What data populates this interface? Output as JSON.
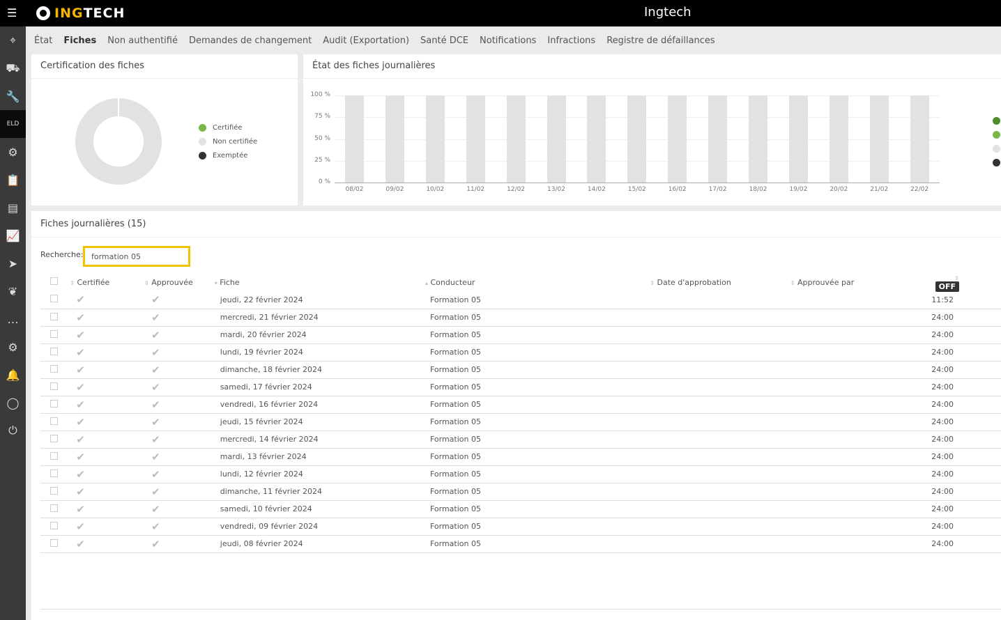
{
  "header": {
    "logo_a": "ING",
    "logo_b": "TECH",
    "title": "Ingtech"
  },
  "sidebar": {
    "items": [
      "map-pin",
      "truck",
      "wrench",
      "eld",
      "engine",
      "clipboard",
      "screen",
      "chart",
      "send",
      "leaf",
      "message",
      "gear",
      "alarm",
      "user",
      "power"
    ],
    "active": 3
  },
  "tabs": [
    "État",
    "Fiches",
    "Non authentifié",
    "Demandes de changement",
    "Audit (Exportation)",
    "Santé DCE",
    "Notifications",
    "Infractions",
    "Registre de défaillances"
  ],
  "active_tab": "Fiches",
  "cert_panel": {
    "title": "Certification des fiches",
    "legend": [
      {
        "label": "Certifiée",
        "color": "#7ab648"
      },
      {
        "label": "Non certifiée",
        "color": "#e2e2e2"
      },
      {
        "label": "Exemptée",
        "color": "#333333"
      }
    ]
  },
  "chart_data": {
    "type": "bar",
    "title": "État des fiches journalières",
    "categories": [
      "08/02",
      "09/02",
      "10/02",
      "11/02",
      "12/02",
      "13/02",
      "14/02",
      "15/02",
      "16/02",
      "17/02",
      "18/02",
      "19/02",
      "20/02",
      "21/02",
      "22/02"
    ],
    "values": [
      100,
      100,
      100,
      100,
      100,
      100,
      100,
      100,
      100,
      100,
      100,
      100,
      100,
      100,
      100
    ],
    "yticks": [
      "0 %",
      "25 %",
      "50 %",
      "75 %",
      "100 %"
    ],
    "ylim": [
      0,
      100
    ],
    "bar_color": "#e2e2e2",
    "legend_colors": [
      "#4f8a2b",
      "#7ab648",
      "#e2e2e2",
      "#333333"
    ]
  },
  "list": {
    "title": "Fiches journalières (15)",
    "search_label": "Recherche:",
    "search_value": "formation 05",
    "columns": [
      "Certifiée",
      "Approuvée",
      "Fiche",
      "Conducteur",
      "Date d'approbation",
      "Approuvée par",
      "OFF"
    ],
    "rows": [
      [
        "jeudi, 22 février 2024",
        "Formation 05",
        "11:52"
      ],
      [
        "mercredi, 21 février 2024",
        "Formation 05",
        "24:00"
      ],
      [
        "mardi, 20 février 2024",
        "Formation 05",
        "24:00"
      ],
      [
        "lundi, 19 février 2024",
        "Formation 05",
        "24:00"
      ],
      [
        "dimanche, 18 février 2024",
        "Formation 05",
        "24:00"
      ],
      [
        "samedi, 17 février 2024",
        "Formation 05",
        "24:00"
      ],
      [
        "vendredi, 16 février 2024",
        "Formation 05",
        "24:00"
      ],
      [
        "jeudi, 15 février 2024",
        "Formation 05",
        "24:00"
      ],
      [
        "mercredi, 14 février 2024",
        "Formation 05",
        "24:00"
      ],
      [
        "mardi, 13 février 2024",
        "Formation 05",
        "24:00"
      ],
      [
        "lundi, 12 février 2024",
        "Formation 05",
        "24:00"
      ],
      [
        "dimanche, 11 février 2024",
        "Formation 05",
        "24:00"
      ],
      [
        "samedi, 10 février 2024",
        "Formation 05",
        "24:00"
      ],
      [
        "vendredi, 09 février 2024",
        "Formation 05",
        "24:00"
      ],
      [
        "jeudi, 08 février 2024",
        "Formation 05",
        "24:00"
      ]
    ]
  }
}
